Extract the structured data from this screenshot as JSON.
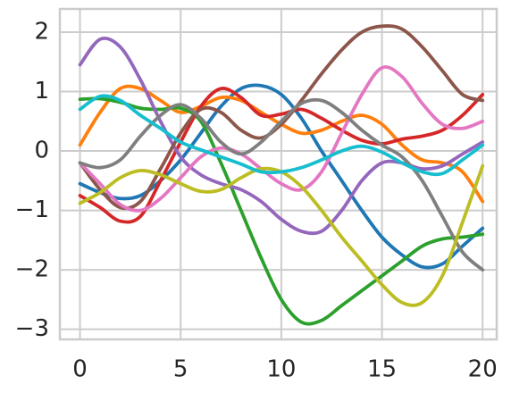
{
  "chart_data": {
    "type": "line",
    "x": [
      0,
      1,
      2,
      3,
      4,
      5,
      6,
      7,
      8,
      9,
      10,
      11,
      12,
      13,
      14,
      15,
      16,
      17,
      18,
      19,
      20
    ],
    "xlim": [
      -1,
      20.7
    ],
    "ylim": [
      -3.17,
      2.39
    ],
    "xticks": [
      0,
      5,
      10,
      15,
      20
    ],
    "yticks": [
      {
        "value": -3,
        "label": "−3"
      },
      {
        "value": -2,
        "label": "−2"
      },
      {
        "value": -1,
        "label": "−1"
      },
      0,
      1,
      2
    ],
    "grid": true,
    "series": [
      {
        "color": "#1f77b4",
        "values": [
          -0.55,
          -0.7,
          -0.8,
          -0.75,
          -0.5,
          -0.15,
          0.3,
          0.75,
          1.05,
          1.1,
          0.95,
          0.55,
          0.0,
          -0.5,
          -1.0,
          -1.45,
          -1.75,
          -1.95,
          -1.9,
          -1.6,
          -1.3
        ]
      },
      {
        "color": "#ff7f0e",
        "values": [
          0.1,
          0.65,
          1.05,
          1.05,
          0.85,
          0.65,
          0.75,
          0.9,
          0.85,
          0.65,
          0.45,
          0.3,
          0.35,
          0.5,
          0.6,
          0.45,
          0.1,
          -0.15,
          -0.2,
          -0.35,
          -0.85
        ]
      },
      {
        "color": "#2ca02c",
        "values": [
          0.87,
          0.88,
          0.82,
          0.72,
          0.7,
          0.72,
          0.5,
          -0.2,
          -1.0,
          -1.8,
          -2.5,
          -2.88,
          -2.85,
          -2.6,
          -2.35,
          -2.1,
          -1.85,
          -1.6,
          -1.48,
          -1.45,
          -1.4
        ]
      },
      {
        "color": "#d62728",
        "values": [
          -0.75,
          -0.95,
          -1.18,
          -1.1,
          -0.5,
          0.15,
          0.75,
          1.05,
          0.9,
          0.6,
          0.62,
          0.7,
          0.55,
          0.35,
          0.18,
          0.12,
          0.2,
          0.25,
          0.35,
          0.6,
          0.95
        ]
      },
      {
        "color": "#9467bd",
        "values": [
          1.45,
          1.88,
          1.75,
          1.2,
          0.5,
          -0.1,
          -0.4,
          -0.55,
          -0.65,
          -0.85,
          -1.15,
          -1.35,
          -1.35,
          -1.0,
          -0.5,
          -0.2,
          -0.2,
          -0.3,
          -0.25,
          -0.05,
          0.15
        ]
      },
      {
        "color": "#8c564b",
        "values": [
          -0.2,
          -0.65,
          -0.95,
          -0.85,
          -0.3,
          0.3,
          0.7,
          0.65,
          0.35,
          0.22,
          0.45,
          0.85,
          1.3,
          1.7,
          2.0,
          2.1,
          2.05,
          1.75,
          1.35,
          0.95,
          0.85
        ]
      },
      {
        "color": "#e377c2",
        "values": [
          -0.2,
          -0.55,
          -0.9,
          -1.0,
          -0.8,
          -0.45,
          -0.1,
          0.05,
          -0.05,
          -0.3,
          -0.55,
          -0.65,
          -0.35,
          0.3,
          0.95,
          1.4,
          1.25,
          0.8,
          0.45,
          0.38,
          0.5
        ]
      },
      {
        "color": "#7f7f7f",
        "values": [
          -0.2,
          -0.28,
          -0.15,
          0.25,
          0.6,
          0.78,
          0.55,
          0.15,
          -0.05,
          0.15,
          0.5,
          0.8,
          0.85,
          0.65,
          0.35,
          0.1,
          -0.1,
          -0.5,
          -1.1,
          -1.7,
          -2.0
        ]
      },
      {
        "color": "#bcbd22",
        "values": [
          -0.88,
          -0.7,
          -0.45,
          -0.33,
          -0.4,
          -0.55,
          -0.68,
          -0.65,
          -0.45,
          -0.3,
          -0.35,
          -0.6,
          -1.0,
          -1.45,
          -1.85,
          -2.25,
          -2.55,
          -2.55,
          -2.1,
          -1.2,
          -0.25
        ]
      },
      {
        "color": "#17becf",
        "values": [
          0.7,
          0.92,
          0.85,
          0.6,
          0.38,
          0.15,
          0.02,
          -0.1,
          -0.22,
          -0.35,
          -0.35,
          -0.28,
          -0.15,
          0.0,
          0.08,
          -0.02,
          -0.2,
          -0.35,
          -0.38,
          -0.15,
          0.1
        ]
      }
    ]
  }
}
